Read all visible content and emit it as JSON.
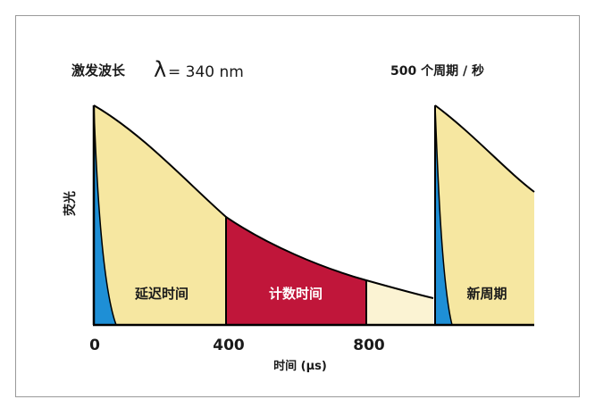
{
  "excitation": {
    "label": "激发波长",
    "lambda": "λ",
    "value": "= 340 nm"
  },
  "cycle_rate": "500 个周期 / 秒",
  "y_axis_label": "荧光",
  "x_axis_label": "时间 (µs)",
  "x_ticks": [
    "0",
    "400",
    "800"
  ],
  "regions": {
    "delay": "延迟时间",
    "count": "计数时间",
    "new_cycle": "新周期"
  },
  "colors": {
    "excitation_pulse": "#1e8fd6",
    "decay_fill": "#f6e7a1",
    "count_fill": "#c0163a",
    "tail_fill": "#fbf3d3",
    "axis": "#000000"
  }
}
